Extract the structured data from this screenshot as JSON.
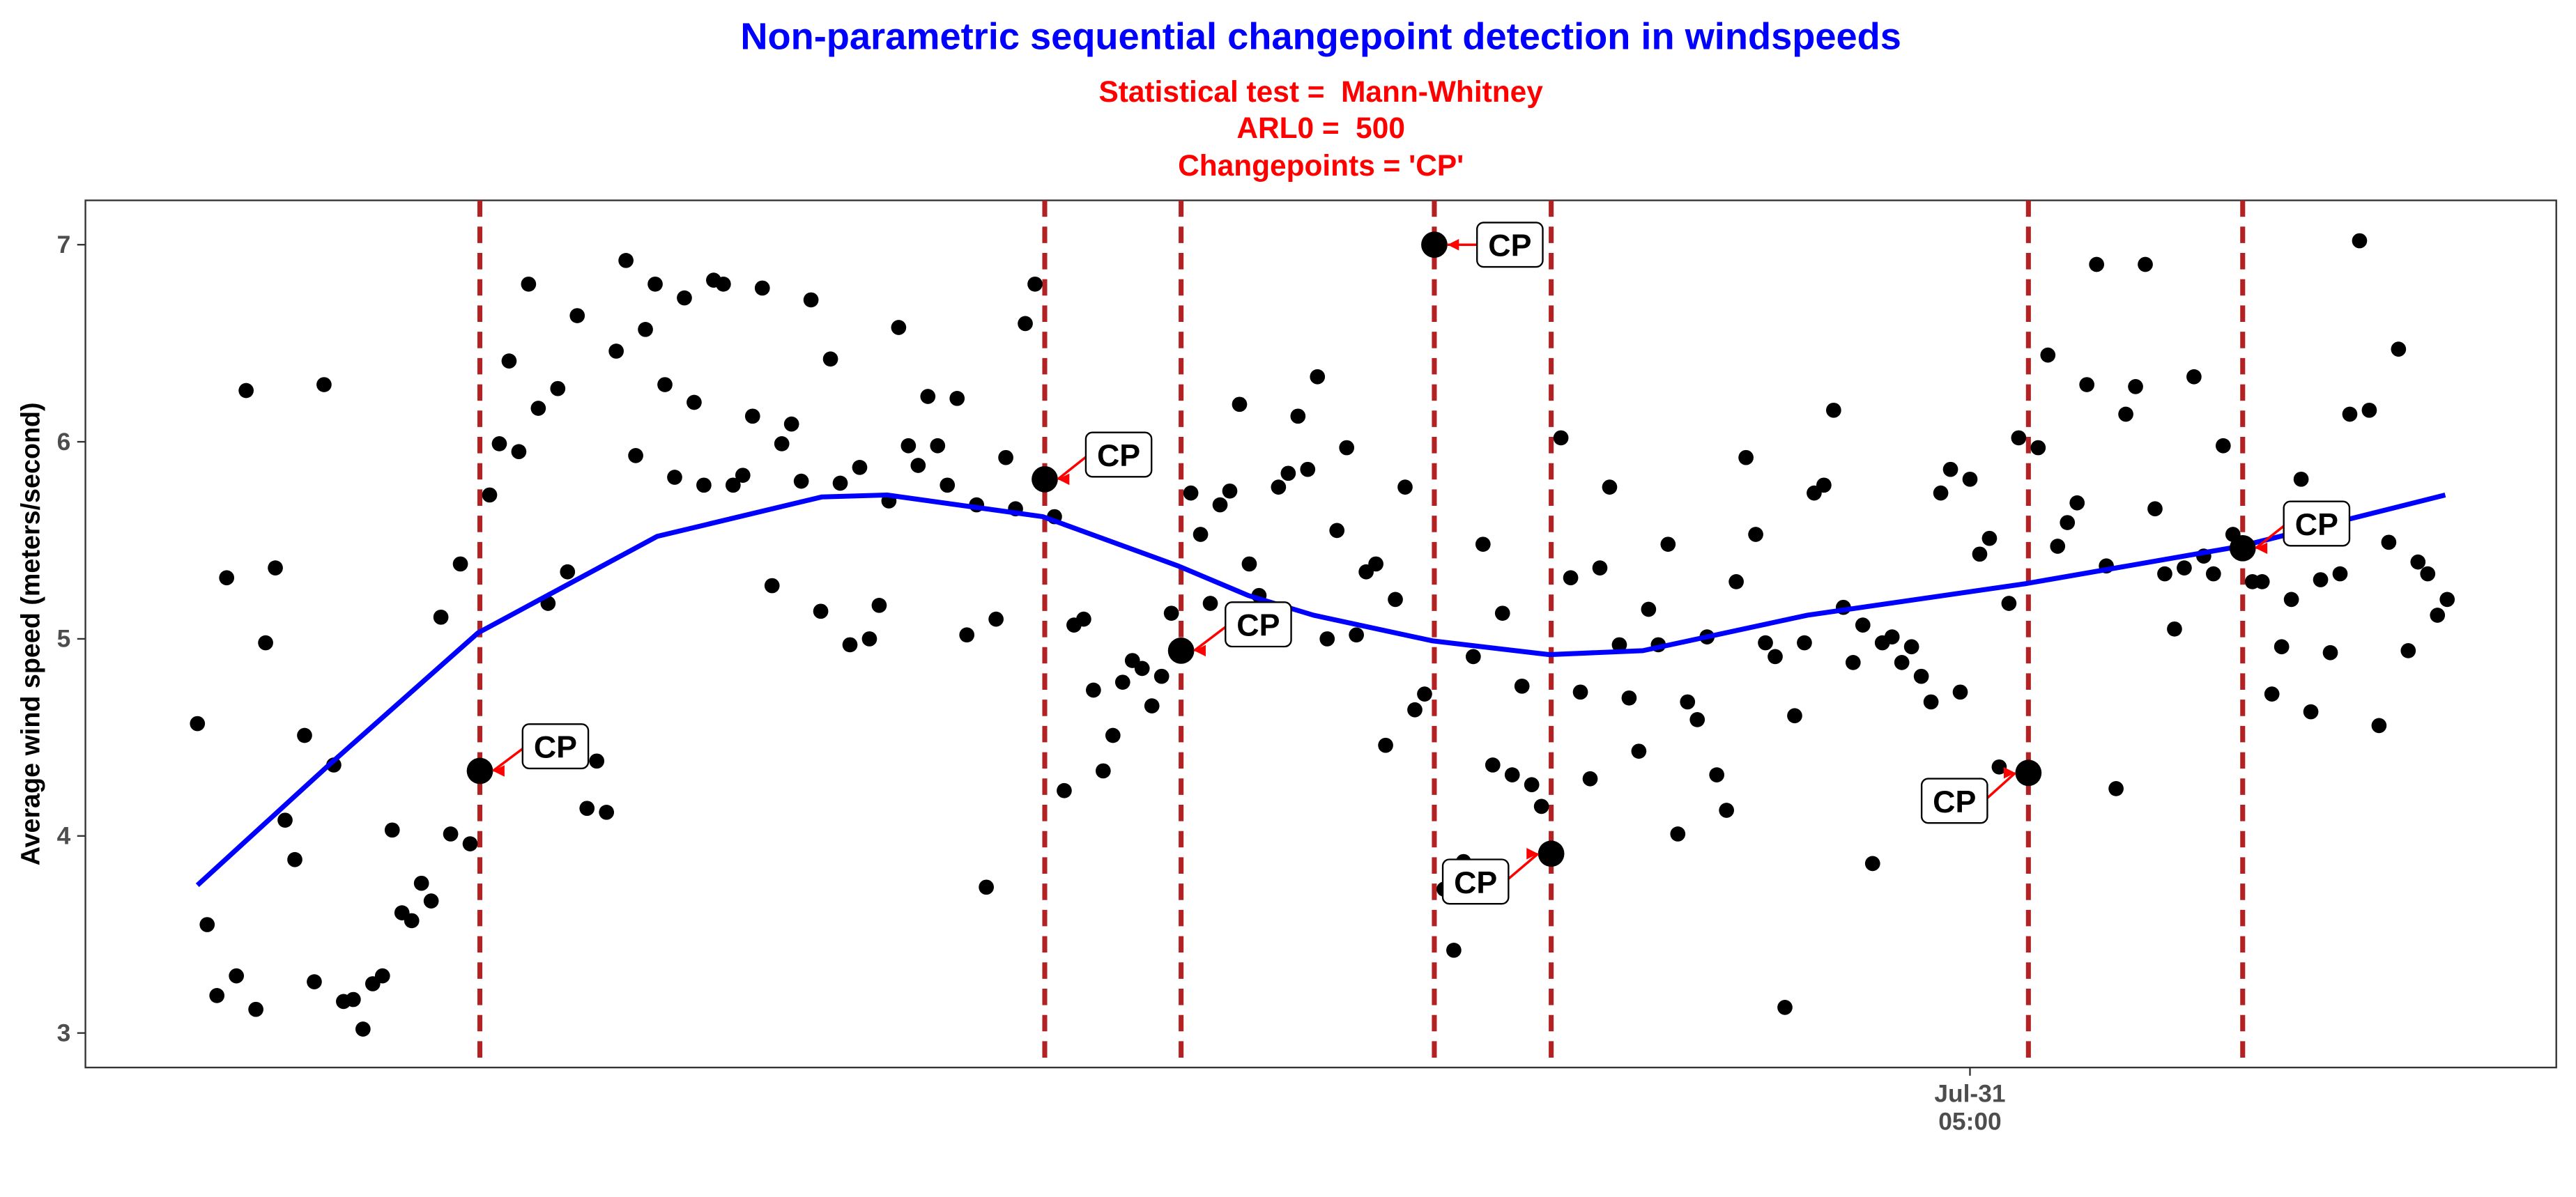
{
  "chart_data": {
    "type": "scatter",
    "title": "Non-parametric sequential changepoint detection in windspeeds",
    "subtitle": [
      "Statistical test =  Mann-Whitney",
      "ARL0 =  500",
      "Changepoints = 'CP'"
    ],
    "ylabel": "Average wind speed (meters/second)",
    "color": "#000000",
    "x": [
      0,
      1,
      2,
      3,
      4,
      5,
      6,
      7,
      8,
      9,
      10,
      11,
      12,
      13,
      14,
      15,
      16,
      17,
      18,
      19,
      20,
      21,
      22,
      23,
      24,
      25,
      26,
      27,
      28,
      29,
      30,
      31,
      32,
      33,
      34,
      35,
      36,
      37,
      38,
      39,
      40,
      41,
      42,
      43,
      44,
      45,
      46,
      47,
      48,
      49,
      50,
      51,
      52,
      53,
      54,
      55,
      56,
      57,
      58,
      59,
      60,
      61,
      62,
      63,
      64,
      65,
      66,
      67,
      68,
      69,
      70,
      71,
      72,
      73,
      74,
      75,
      76,
      77,
      78,
      79,
      80,
      81,
      82,
      83,
      84,
      85,
      86,
      87,
      88,
      89,
      90,
      91,
      92,
      93,
      94,
      95,
      96,
      97,
      98,
      99,
      100,
      101,
      102,
      103,
      104,
      105,
      106,
      107,
      108,
      109,
      110,
      111,
      112,
      113,
      114,
      115,
      116,
      117,
      118,
      119,
      120,
      121,
      122,
      123,
      124,
      125,
      126,
      127,
      128,
      129,
      130,
      131,
      132,
      133,
      134,
      135,
      136,
      137,
      138,
      139,
      140,
      141,
      142,
      143,
      144,
      145,
      146,
      147,
      148,
      149,
      150,
      151,
      152,
      153,
      154,
      155,
      156,
      157,
      158,
      159,
      160,
      161,
      162,
      163,
      164,
      165,
      166,
      167,
      168,
      169,
      170,
      171,
      172,
      173,
      174,
      175,
      176,
      177,
      178,
      179,
      180,
      181,
      182,
      183,
      184,
      185,
      186,
      187,
      188,
      189,
      190,
      191,
      192,
      193,
      194,
      195,
      196,
      197,
      198,
      199,
      200,
      201,
      202,
      203,
      204,
      205,
      206,
      207,
      208,
      209,
      210,
      211,
      212,
      213,
      214,
      215,
      216,
      217,
      218,
      219,
      220,
      221,
      222,
      223,
      224,
      225,
      226,
      227,
      228,
      229,
      230,
      231
    ],
    "values": [
      4.57,
      3.55,
      3.19,
      5.31,
      3.29,
      6.26,
      3.12,
      4.98,
      5.36,
      4.08,
      3.88,
      4.51,
      3.26,
      6.29,
      4.36,
      3.16,
      3.17,
      3.02,
      3.25,
      3.29,
      4.03,
      3.61,
      3.57,
      3.76,
      3.67,
      5.11,
      4.01,
      5.38,
      3.96,
      4.33,
      5.73,
      5.99,
      6.41,
      5.95,
      6.8,
      6.17,
      5.18,
      6.27,
      5.34,
      6.64,
      4.14,
      4.38,
      4.12,
      6.46,
      6.92,
      5.93,
      6.57,
      6.8,
      6.29,
      5.82,
      6.73,
      6.2,
      5.78,
      6.82,
      6.8,
      5.78,
      5.83,
      6.13,
      6.78,
      5.27,
      5.99,
      6.09,
      5.8,
      6.72,
      5.14,
      6.42,
      5.79,
      4.97,
      5.87,
      5.0,
      5.17,
      5.7,
      6.58,
      5.98,
      5.88,
      6.23,
      5.98,
      5.78,
      6.22,
      5.02,
      5.68,
      3.74,
      5.1,
      5.92,
      5.66,
      6.6,
      6.8,
      5.81,
      5.62,
      4.23,
      5.07,
      5.1,
      4.74,
      4.33,
      4.51,
      4.78,
      4.89,
      4.85,
      4.66,
      4.81,
      5.13,
      4.94,
      5.74,
      5.53,
      5.18,
      5.68,
      5.75,
      6.19,
      5.38,
      5.22,
      5.13,
      5.77,
      5.84,
      6.13,
      5.86,
      6.33,
      5.0,
      5.55,
      5.97,
      5.02,
      5.34,
      5.38,
      4.46,
      5.2,
      5.77,
      4.64,
      4.72,
      7.0,
      3.73,
      3.42,
      3.87,
      4.91,
      5.48,
      4.36,
      5.13,
      4.31,
      4.76,
      4.26,
      4.15,
      3.91,
      6.02,
      5.31,
      4.73,
      4.29,
      5.36,
      5.77,
      4.97,
      4.7,
      4.43,
      5.15,
      4.97,
      5.48,
      4.01,
      4.68,
      4.59,
      5.01,
      4.31,
      4.13,
      5.29,
      5.92,
      5.53,
      4.98,
      4.91,
      3.13,
      4.61,
      4.98,
      5.74,
      5.78,
      6.16,
      5.16,
      4.88,
      5.07,
      3.86,
      4.98,
      5.01,
      4.88,
      4.96,
      4.81,
      4.68,
      5.74,
      5.86,
      4.73,
      5.81,
      5.43,
      5.51,
      4.35,
      5.18,
      6.02,
      4.32,
      5.97,
      6.44,
      5.47,
      5.59,
      5.69,
      6.29,
      6.9,
      5.37,
      4.24,
      6.14,
      6.28,
      6.9,
      5.66,
      5.33,
      5.05,
      5.36,
      6.33,
      5.42,
      5.33,
      5.98,
      5.53,
      5.46,
      5.29,
      5.29,
      4.72,
      4.96,
      5.2,
      5.81,
      4.63,
      5.3,
      4.93,
      5.33,
      6.14,
      7.02,
      6.16,
      4.56,
      5.49,
      6.47,
      4.94,
      5.39,
      5.33,
      5.12,
      5.2
    ],
    "xlim": [
      -11.5,
      242.2
    ],
    "ylim": [
      2.825,
      7.225
    ],
    "xticks": [
      {
        "value": 182,
        "label": "Jul-31\n05:00"
      }
    ],
    "yticks": [
      3,
      4,
      5,
      6,
      7
    ],
    "changepoints": {
      "x": [
        29,
        87,
        101,
        127,
        139,
        188,
        210
      ],
      "values": [
        4.33,
        5.81,
        4.94,
        7.0,
        3.91,
        4.32,
        5.46
      ],
      "label": "CP",
      "line_color": "#b22222",
      "arrow_color": "#ff0000"
    },
    "smooth": {
      "x": [
        0,
        13.5,
        28.8,
        47.2,
        64.1,
        70.8,
        86.8,
        100.7,
        107.9,
        114.6,
        126.8,
        138.8,
        148.4,
        165.3,
        187.7,
        209.8,
        230.8
      ],
      "values": [
        3.75,
        4.36,
        5.03,
        5.52,
        5.72,
        5.73,
        5.62,
        5.37,
        5.22,
        5.12,
        4.99,
        4.92,
        4.94,
        5.12,
        5.28,
        5.47,
        5.73
      ],
      "color": "#0000ff"
    }
  }
}
